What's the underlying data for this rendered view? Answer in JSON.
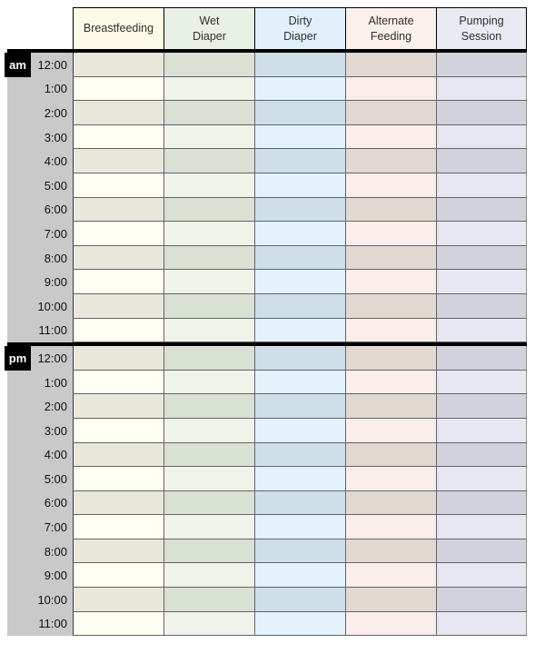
{
  "page": {
    "background": "#ffffff"
  },
  "table": {
    "gutter": {
      "bg": "#c9c9c9"
    },
    "meridiem_badge": {
      "bg": "#000000",
      "text_color": "#ffffff"
    },
    "thick_divider_color": "#000000",
    "grid_line_color": "#63636b",
    "columns": [
      {
        "id": "breastfeeding",
        "label": "Breastfeeding",
        "header_bg": "#fdfbe7",
        "row_dark_bg": "#e8e7da",
        "row_light_bg": "#fffff1"
      },
      {
        "id": "wet-diaper",
        "label": "Wet\nDiaper",
        "header_bg": "#e9f0e6",
        "row_dark_bg": "#d9e0d4",
        "row_light_bg": "#eff4ea"
      },
      {
        "id": "dirty-diaper",
        "label": "Dirty\nDiaper",
        "header_bg": "#e1f0fa",
        "row_dark_bg": "#cfdfe9",
        "row_light_bg": "#e3f2fb"
      },
      {
        "id": "alternate-feeding",
        "label": "Alternate\nFeeding",
        "header_bg": "#fcf0ec",
        "row_dark_bg": "#e1d8d2",
        "row_light_bg": "#fbeeea"
      },
      {
        "id": "pumping-session",
        "label": "Pumping\nSession",
        "header_bg": "#e9ebf2",
        "row_dark_bg": "#d2d2dd",
        "row_light_bg": "#e7e7f2"
      }
    ],
    "sections": [
      {
        "meridiem": "am",
        "times": [
          "12:00",
          "1:00",
          "2:00",
          "3:00",
          "4:00",
          "5:00",
          "6:00",
          "7:00",
          "8:00",
          "9:00",
          "10:00",
          "11:00"
        ]
      },
      {
        "meridiem": "pm",
        "times": [
          "12:00",
          "1:00",
          "2:00",
          "3:00",
          "4:00",
          "5:00",
          "6:00",
          "7:00",
          "8:00",
          "9:00",
          "10:00",
          "11:00"
        ]
      }
    ]
  }
}
